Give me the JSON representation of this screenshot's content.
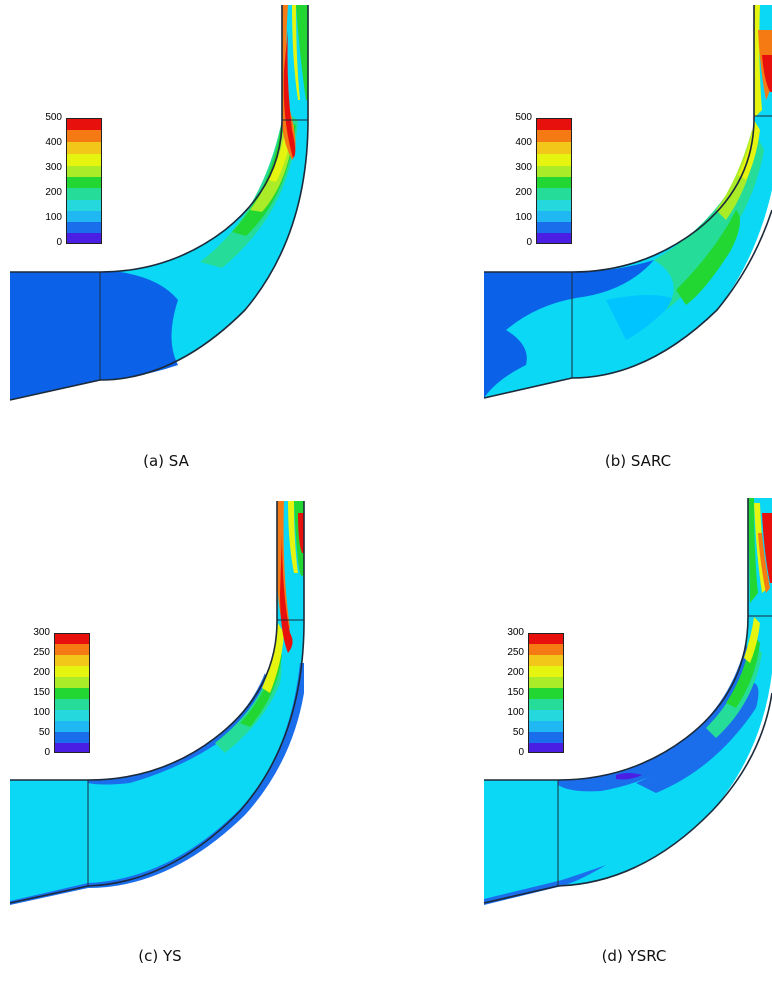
{
  "colors": {
    "bands_top_to_bottom": [
      "#e8100c",
      "#f57a14",
      "#f3c61a",
      "#e6f50f",
      "#a9ec27",
      "#23d733",
      "#25dc99",
      "#25d8dd",
      "#20b8f2",
      "#1b6eeb",
      "#4a1fe3"
    ],
    "base_blue": "#0b62e8",
    "light_blue": "#0ad8f5",
    "mid_cyan": "#00c4ff",
    "wall": "#1c2a3a"
  },
  "panels": [
    {
      "caption": "(a) SA",
      "legend_ticks": [
        "500",
        "400",
        "300",
        "200",
        "100",
        "0"
      ]
    },
    {
      "caption": "(b) SARC",
      "legend_ticks": [
        "500",
        "400",
        "300",
        "200",
        "100",
        "0"
      ]
    },
    {
      "caption": "(c) YS",
      "legend_ticks": [
        "300",
        "250",
        "200",
        "150",
        "100",
        "50",
        "0"
      ]
    },
    {
      "caption": "(d) YSRC",
      "legend_ticks": [
        "300",
        "250",
        "200",
        "150",
        "100",
        "50",
        "0"
      ]
    }
  ]
}
